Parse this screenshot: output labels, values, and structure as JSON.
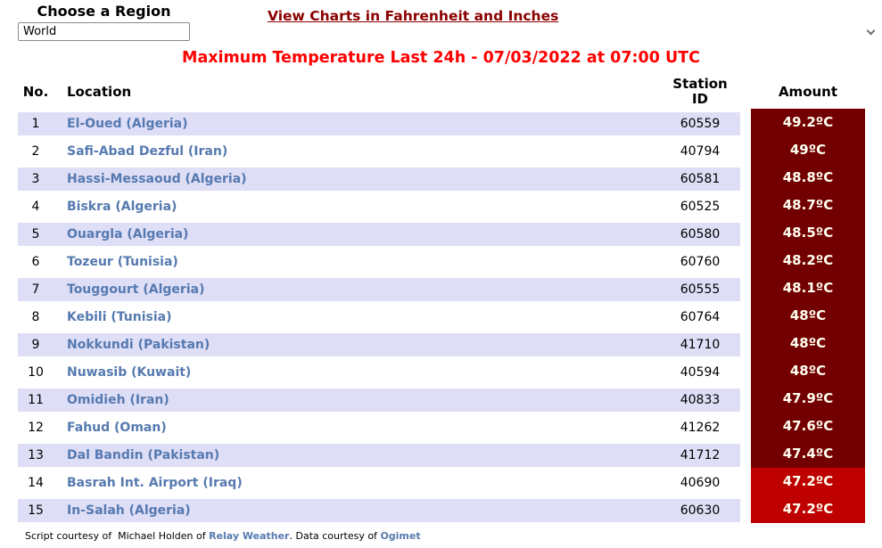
{
  "region_chooser": {
    "label": "Choose a Region",
    "selected": "World"
  },
  "charts_link": {
    "label": "View Charts in Fahrenheit and Inches"
  },
  "title": "Maximum Temperature Last 24h - 07/03/2022 at 07:00 UTC",
  "table": {
    "headers": {
      "no": "No.",
      "location": "Location",
      "station_id": "Station\nID",
      "amount": "Amount"
    },
    "rows": [
      {
        "no": "1",
        "location": "El-Oued (Algeria)",
        "station_id": "60559",
        "amount": "49.2ºC",
        "amount_style": "dark-red"
      },
      {
        "no": "2",
        "location": "Safi-Abad Dezful (Iran)",
        "station_id": "40794",
        "amount": "49ºC",
        "amount_style": "dark-red"
      },
      {
        "no": "3",
        "location": "Hassi-Messaoud (Algeria)",
        "station_id": "60581",
        "amount": "48.8ºC",
        "amount_style": "dark-red"
      },
      {
        "no": "4",
        "location": "Biskra (Algeria)",
        "station_id": "60525",
        "amount": "48.7ºC",
        "amount_style": "dark-red"
      },
      {
        "no": "5",
        "location": "Ouargla (Algeria)",
        "station_id": "60580",
        "amount": "48.5ºC",
        "amount_style": "dark-red"
      },
      {
        "no": "6",
        "location": "Tozeur (Tunisia)",
        "station_id": "60760",
        "amount": "48.2ºC",
        "amount_style": "dark-red"
      },
      {
        "no": "7",
        "location": "Touggourt (Algeria)",
        "station_id": "60555",
        "amount": "48.1ºC",
        "amount_style": "dark-red"
      },
      {
        "no": "8",
        "location": "Kebili (Tunisia)",
        "station_id": "60764",
        "amount": "48ºC",
        "amount_style": "dark-red"
      },
      {
        "no": "9",
        "location": "Nokkundi (Pakistan)",
        "station_id": "41710",
        "amount": "48ºC",
        "amount_style": "dark-red"
      },
      {
        "no": "10",
        "location": "Nuwasib (Kuwait)",
        "station_id": "40594",
        "amount": "48ºC",
        "amount_style": "dark-red"
      },
      {
        "no": "11",
        "location": "Omidieh (Iran)",
        "station_id": "40833",
        "amount": "47.9ºC",
        "amount_style": "dark-red"
      },
      {
        "no": "12",
        "location": "Fahud (Oman)",
        "station_id": "41262",
        "amount": "47.6ºC",
        "amount_style": "dark-red"
      },
      {
        "no": "13",
        "location": "Dal Bandin (Pakistan)",
        "station_id": "41712",
        "amount": "47.4ºC",
        "amount_style": "dark-red"
      },
      {
        "no": "14",
        "location": "Basrah Int. Airport (Iraq)",
        "station_id": "40690",
        "amount": "47.2ºC",
        "amount_style": "bright-red"
      },
      {
        "no": "15",
        "location": "In-Salah (Algeria)",
        "station_id": "60630",
        "amount": "47.2ºC",
        "amount_style": "bright-red"
      }
    ]
  },
  "footer": {
    "part1": "Script courtesy of  Michael Holden of ",
    "link1": "Relay Weather",
    "part2": ". Data courtesy of ",
    "link2": "Ogimet"
  },
  "colors": {
    "row_lavender": "#dedef7",
    "location_blue": "#567ab0",
    "amount_dark_red": "#730000",
    "amount_bright_red": "#be0000",
    "amount_text": "#fffff0",
    "title_red": "#ff0000",
    "link_dark_red": "#8b0000"
  }
}
